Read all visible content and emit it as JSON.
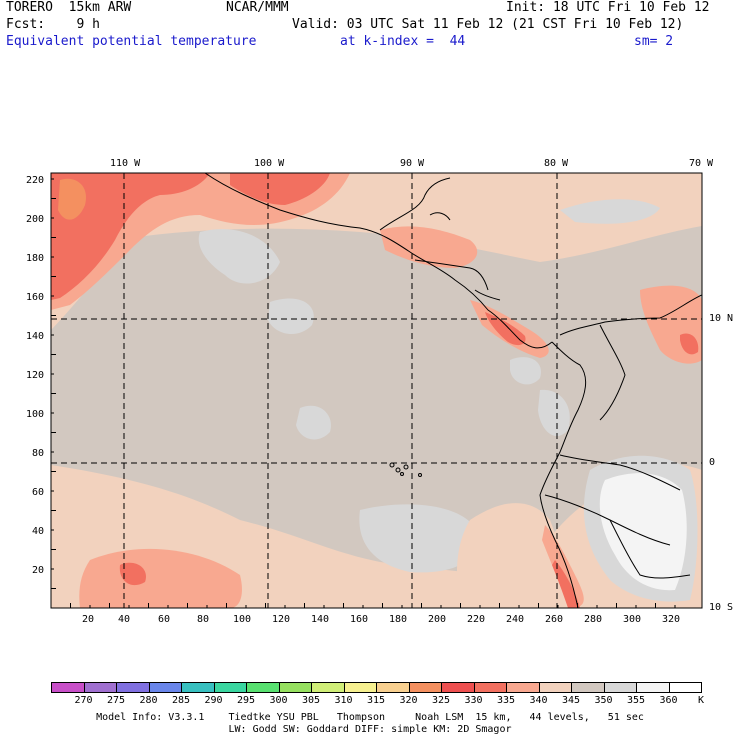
{
  "header": {
    "model": "TORERO  15km ARW",
    "org": "NCAR/MMM",
    "init": "Init: 18 UTC Fri 10 Feb 12",
    "fcst": "Fcst:    9 h",
    "valid": "Valid: 03 UTC Sat 11 Feb 12 (21 CST Fri 10 Feb 12)",
    "field": "Equivalent potential temperature",
    "level": "at k-index =  44",
    "smooth": "sm= 2"
  },
  "map": {
    "top_lon_labels": [
      "110 W",
      "100 W",
      "90 W",
      "80 W",
      "70 W"
    ],
    "right_lat_labels": [
      "10 N",
      "0",
      "10 S"
    ],
    "y_grid_labels": [
      "220",
      "200",
      "180",
      "160",
      "140",
      "120",
      "100",
      "80",
      "60",
      "40",
      "20"
    ],
    "x_grid_labels": [
      "20",
      "40",
      "60",
      "80",
      "100",
      "120",
      "140",
      "160",
      "180",
      "200",
      "220",
      "240",
      "260",
      "280",
      "300",
      "320"
    ]
  },
  "colorbar": {
    "unit": "K",
    "labels": [
      "270",
      "275",
      "280",
      "285",
      "290",
      "295",
      "300",
      "305",
      "310",
      "315",
      "320",
      "325",
      "330",
      "335",
      "340",
      "345",
      "350",
      "355",
      "360"
    ],
    "colors": [
      "#c84fc8",
      "#a070d0",
      "#8070e0",
      "#6a86ea",
      "#38c0c0",
      "#3ad6a0",
      "#58e070",
      "#96e060",
      "#d0ee78",
      "#f6f090",
      "#f8d090",
      "#f49060",
      "#ee5050",
      "#f27060",
      "#f8a890",
      "#f2d2be",
      "#d2c8c0",
      "#d8d8d8",
      "#f4f4f4",
      "#ffffff"
    ]
  },
  "footer": {
    "line1": "Model Info: V3.3.1    Tiedtke YSU PBL   Thompson     Noah LSM  15 km,   44 levels,   51 sec",
    "line2": "LW: Godd SW: Goddard DIFF: simple KM: 2D Smagor"
  }
}
